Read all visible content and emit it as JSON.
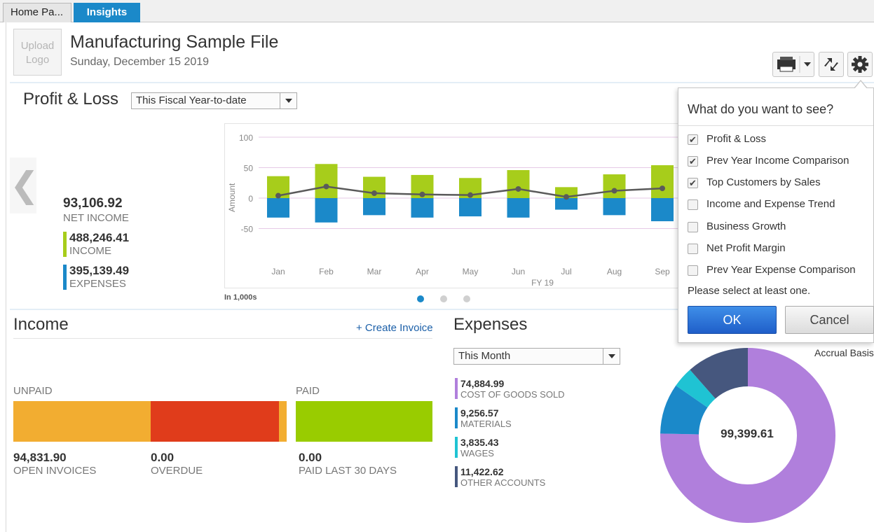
{
  "tabs": [
    {
      "label": "Home Pa..."
    },
    {
      "label": "Insights"
    }
  ],
  "header": {
    "logo_text": "Upload Logo",
    "company": "Manufacturing Sample File",
    "date": "Sunday, December 15 2019",
    "icons": [
      "printer-icon",
      "refresh-icon",
      "gear-icon"
    ]
  },
  "profit_loss": {
    "title": "Profit & Loss",
    "period": "This Fiscal Year-to-date",
    "net_income": "93,106.92",
    "net_income_label": "NET INCOME",
    "income": "488,246.41",
    "income_label": "INCOME",
    "expenses": "395,139.49",
    "expenses_label": "EXPENSES",
    "units_note": "In 1,000s",
    "colors": {
      "income": "#a7cd1b",
      "expenses": "#1b89c9",
      "line": "#5a5a5a"
    }
  },
  "chart_data": {
    "type": "bar",
    "categories": [
      "Jan",
      "Feb",
      "Mar",
      "Apr",
      "May",
      "Jun",
      "Jul",
      "Aug",
      "Sep"
    ],
    "series": [
      {
        "values": [
          36,
          56,
          35,
          38,
          33,
          46,
          18,
          39,
          54
        ],
        "color": "#a7cd1b"
      },
      {
        "values": [
          -32,
          -40,
          -28,
          -32,
          -30,
          -32,
          -19,
          -28,
          -38
        ],
        "color": "#1b89c9"
      },
      {
        "values": [
          4,
          19,
          8,
          6,
          5,
          15,
          2,
          12,
          16
        ],
        "color": "#5a5a5a",
        "style": "line"
      }
    ],
    "ylabel": "Amount",
    "xlabel": "FY 19",
    "yticks": [
      100,
      50,
      0,
      -50
    ],
    "ylim": [
      -75,
      100
    ],
    "grid": true
  },
  "income": {
    "title": "Income",
    "create_link": "+ Create Invoice",
    "unpaid_label": "UNPAID",
    "paid_label": "PAID",
    "open_invoices": "94,831.90",
    "open_invoices_label": "OPEN INVOICES",
    "overdue": "0.00",
    "overdue_label": "OVERDUE",
    "paid_30": "0.00",
    "paid_30_label": "PAID LAST 30 DAYS",
    "colors": {
      "open": "#f2ad31",
      "overdue": "#e03c1b",
      "paid": "#99cc00"
    }
  },
  "expenses": {
    "title": "Expenses",
    "period": "This Month",
    "basis": "Accrual Basis",
    "total": "99,399.61",
    "items": [
      {
        "value": "74,884.99",
        "label": "COST OF GOODS SOLD",
        "color": "#b07fdc"
      },
      {
        "value": "9,256.57",
        "label": "MATERIALS",
        "color": "#1b89c9"
      },
      {
        "value": "3,835.43",
        "label": "WAGES",
        "color": "#1fc3d3"
      },
      {
        "value": "11,422.62",
        "label": "OTHER ACCOUNTS",
        "color": "#46577e"
      }
    ],
    "donut_values": [
      74884.99,
      9256.57,
      3835.43,
      11422.62
    ]
  },
  "popup": {
    "title": "What do you want to see?",
    "options": [
      {
        "label": "Profit & Loss",
        "checked": true
      },
      {
        "label": "Prev Year Income Comparison",
        "checked": true
      },
      {
        "label": "Top Customers by Sales",
        "checked": true
      },
      {
        "label": "Income and Expense Trend",
        "checked": false
      },
      {
        "label": "Business Growth",
        "checked": false
      },
      {
        "label": "Net Profit Margin",
        "checked": false
      },
      {
        "label": "Prev Year Expense Comparison",
        "checked": false
      }
    ],
    "note": "Please select at least one.",
    "ok": "OK",
    "cancel": "Cancel"
  }
}
